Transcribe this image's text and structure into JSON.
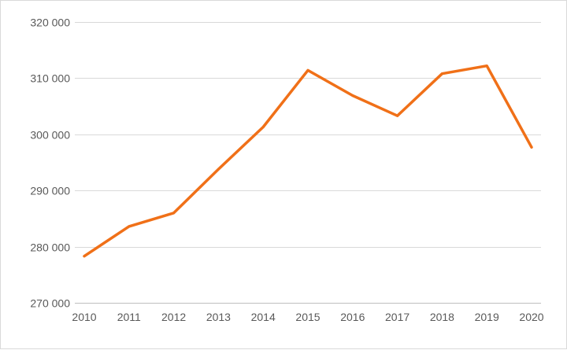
{
  "chart_data": {
    "type": "line",
    "title": "",
    "xlabel": "",
    "ylabel": "",
    "categories": [
      "2010",
      "2011",
      "2012",
      "2013",
      "2014",
      "2015",
      "2016",
      "2017",
      "2018",
      "2019",
      "2020"
    ],
    "series": [
      {
        "values": [
          278300,
          283600,
          286000,
          293800,
          301300,
          311400,
          306900,
          303300,
          310800,
          312200,
          297700
        ],
        "color": "#f07018"
      }
    ],
    "ylim": [
      270000,
      320000
    ],
    "yticks": [
      270000,
      280000,
      290000,
      300000,
      310000,
      320000
    ],
    "ytick_labels": [
      "270 000",
      "280 000",
      "290 000",
      "300 000",
      "310 000",
      "320 000"
    ],
    "grid": true,
    "legend": "none"
  }
}
